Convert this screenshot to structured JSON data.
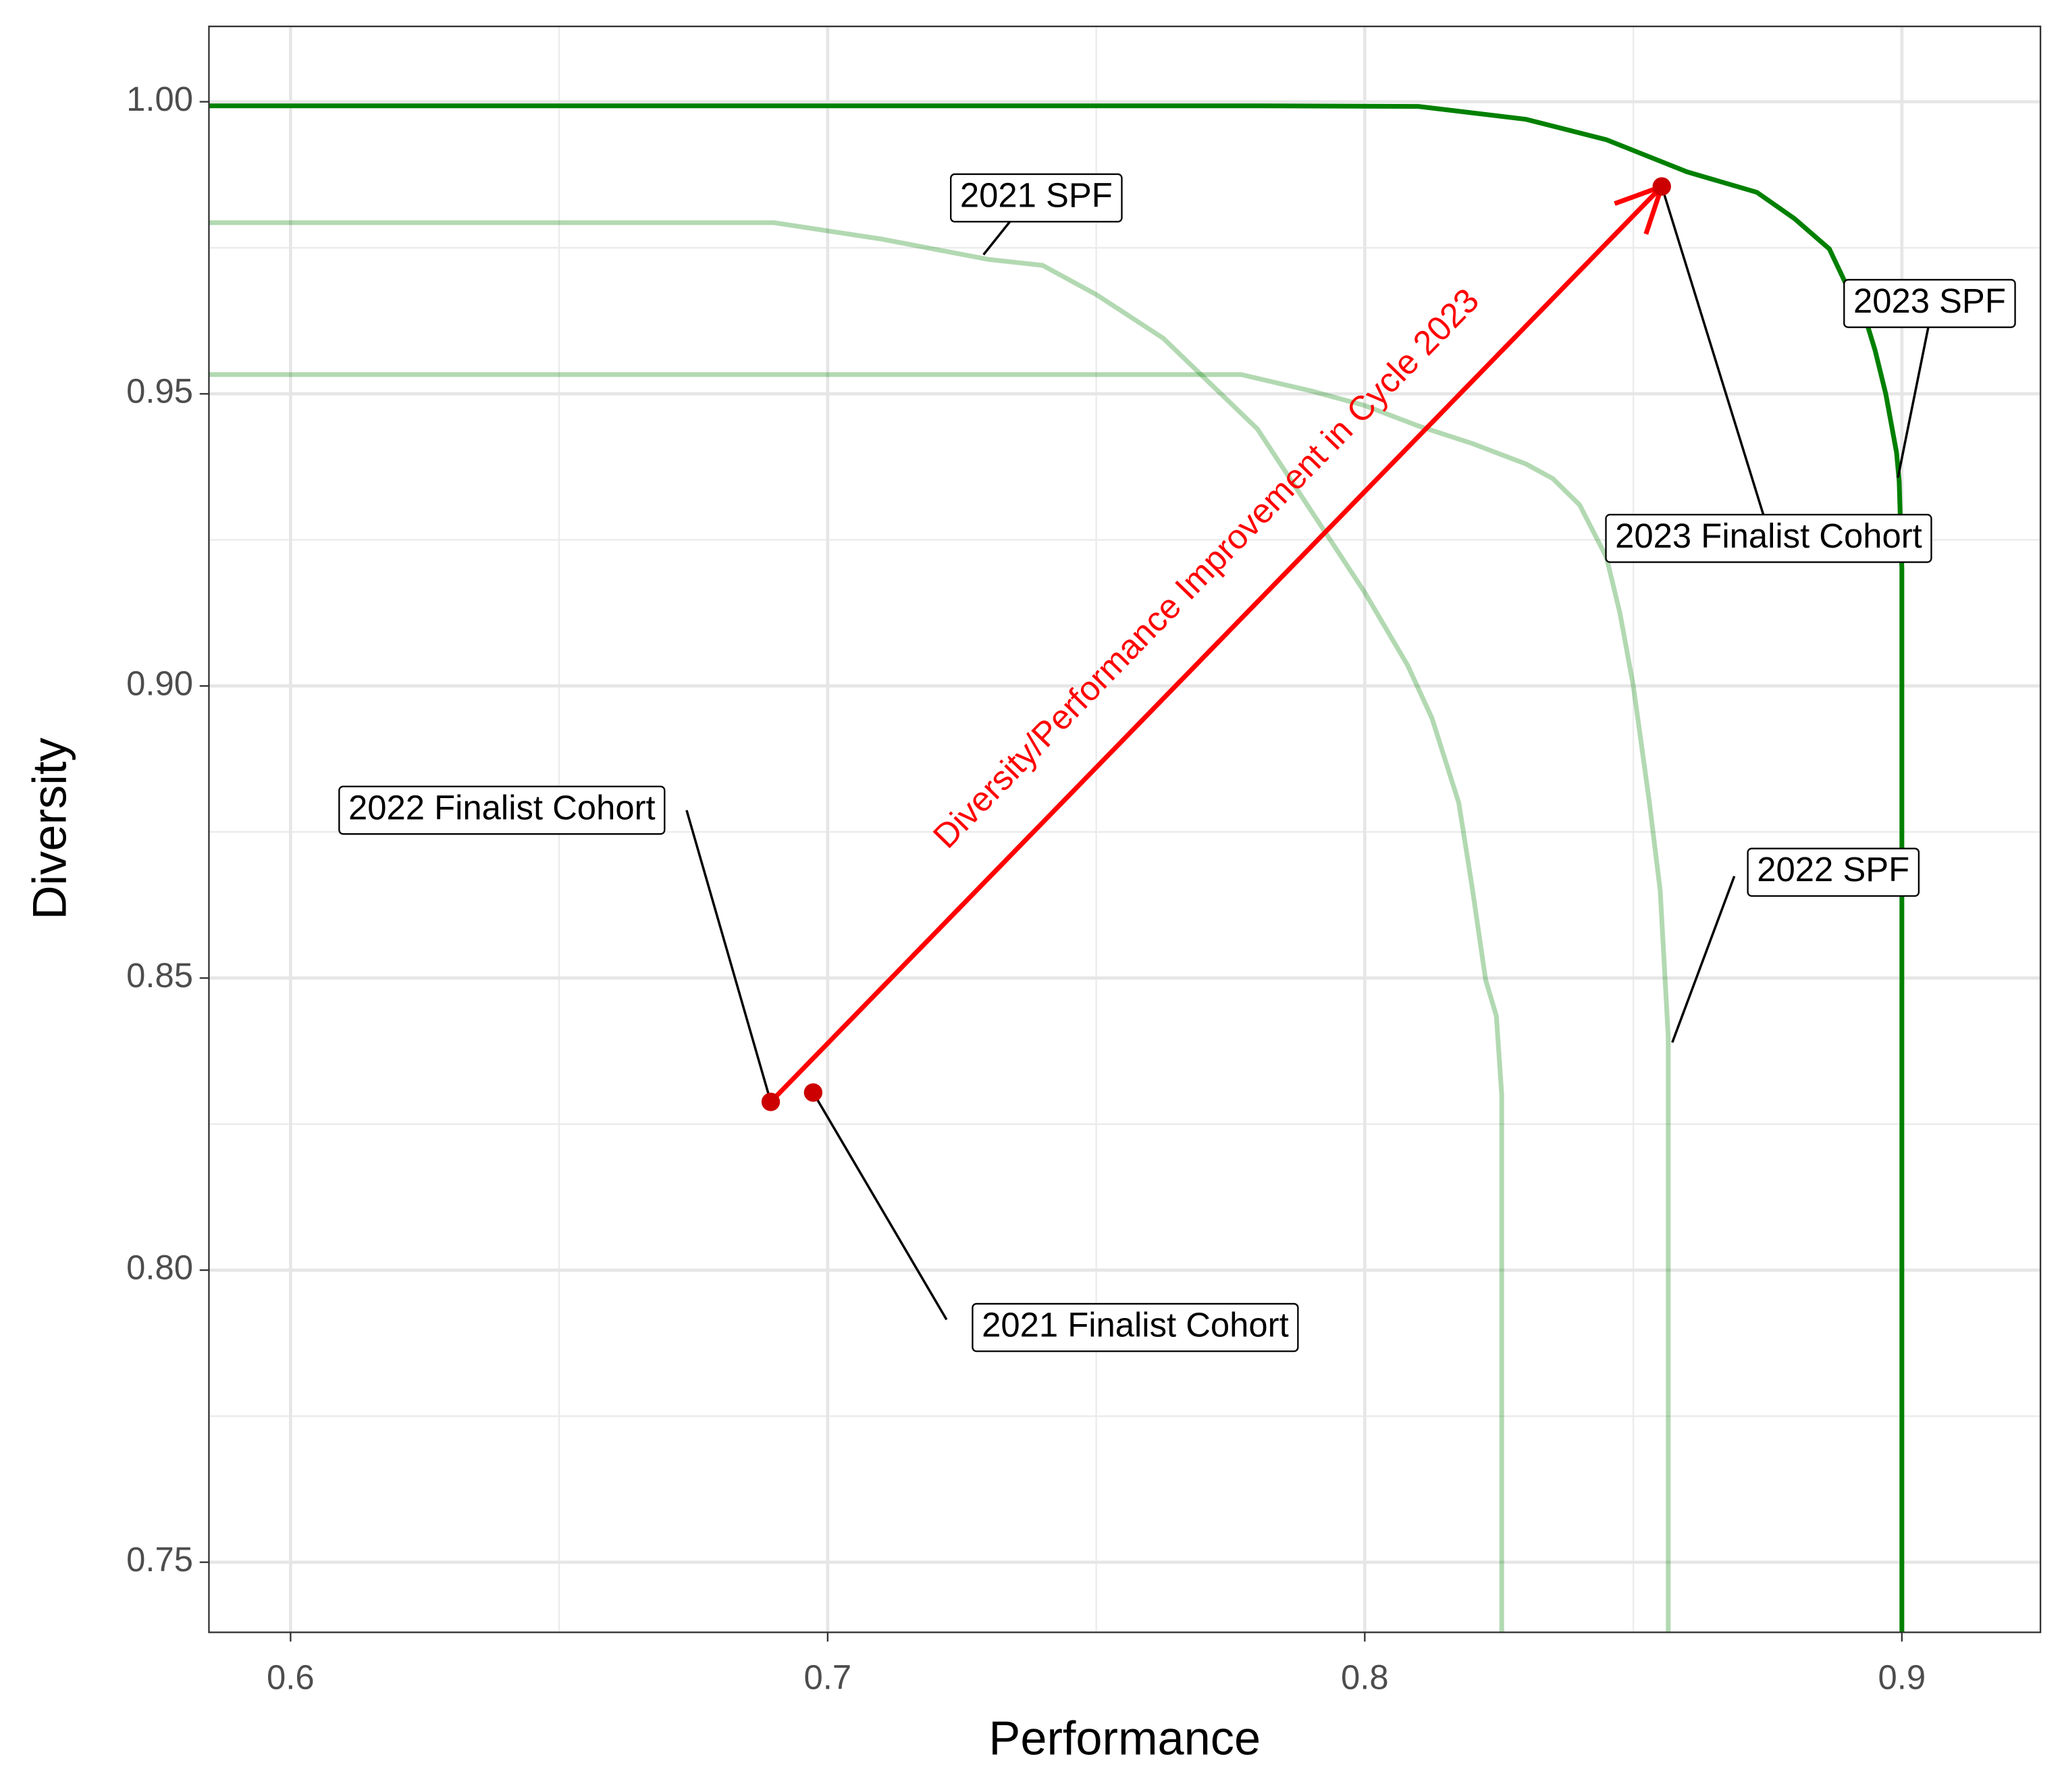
{
  "chart_data": {
    "type": "line",
    "x_label": "Performance",
    "y_label": "Diversity",
    "xlim": [
      0.5848,
      0.9258
    ],
    "ylim": [
      0.738,
      1.0129
    ],
    "xticks": [
      0.6,
      0.7,
      0.8,
      0.9
    ],
    "yticks": [
      0.75,
      {
        "value": 0.8,
        "label": "0.80"
      },
      0.85,
      {
        "value": 0.9,
        "label": "0.90"
      },
      0.95,
      {
        "value": 1.0,
        "label": "1.00"
      }
    ],
    "grid": true,
    "series": [
      {
        "name": "2021 SPF",
        "color": "#008000",
        "opacity": 0.3,
        "x": [
          0.5848,
          0.69,
          0.71,
          0.73,
          0.74,
          0.75,
          0.7625,
          0.78,
          0.79,
          0.8,
          0.808,
          0.8125,
          0.8175,
          0.82,
          0.8225,
          0.8245,
          0.8255,
          0.8255
        ],
        "values": [
          0.9793,
          0.9793,
          0.9765,
          0.973,
          0.972,
          0.967,
          0.9595,
          0.944,
          0.93,
          0.916,
          0.9035,
          0.8945,
          0.88,
          0.8655,
          0.8497,
          0.8435,
          0.83,
          0.738
        ]
      },
      {
        "name": "2022 SPF",
        "color": "#008000",
        "opacity": 0.3,
        "x": [
          0.5848,
          0.777,
          0.79,
          0.8,
          0.81,
          0.82,
          0.83,
          0.835,
          0.84,
          0.845,
          0.8475,
          0.85,
          0.853,
          0.855,
          0.8565,
          0.8565
        ],
        "values": [
          0.9533,
          0.9533,
          0.9505,
          0.948,
          0.9445,
          0.9415,
          0.938,
          0.9355,
          0.931,
          0.922,
          0.9125,
          0.9,
          0.88,
          0.865,
          0.84,
          0.738
        ]
      },
      {
        "name": "2023 SPF",
        "color": "#008000",
        "opacity": 1,
        "x": [
          0.5848,
          0.78,
          0.81,
          0.83,
          0.845,
          0.86,
          0.873,
          0.88,
          0.8865,
          0.89,
          0.8935,
          0.895,
          0.897,
          0.899,
          0.8995,
          0.9,
          0.9
        ],
        "values": [
          0.9993,
          0.9993,
          0.9992,
          0.997,
          0.9935,
          0.988,
          0.9845,
          0.98,
          0.9748,
          0.968,
          0.962,
          0.9575,
          0.95,
          0.94,
          0.935,
          0.92,
          0.738
        ]
      }
    ],
    "points": {
      "type": "scatter",
      "color": "#cc0000",
      "labels": [
        "2021 Finalist Cohort",
        "2022 Finalist Cohort",
        "2023 Finalist Cohort"
      ],
      "x": [
        0.6973,
        0.6894,
        0.8553
      ],
      "values": [
        0.8304,
        0.8288,
        0.9855
      ]
    },
    "arrow": {
      "text": "Diversity/Performance Improvement in Cycle 2023",
      "color": "#ff0000"
    }
  }
}
